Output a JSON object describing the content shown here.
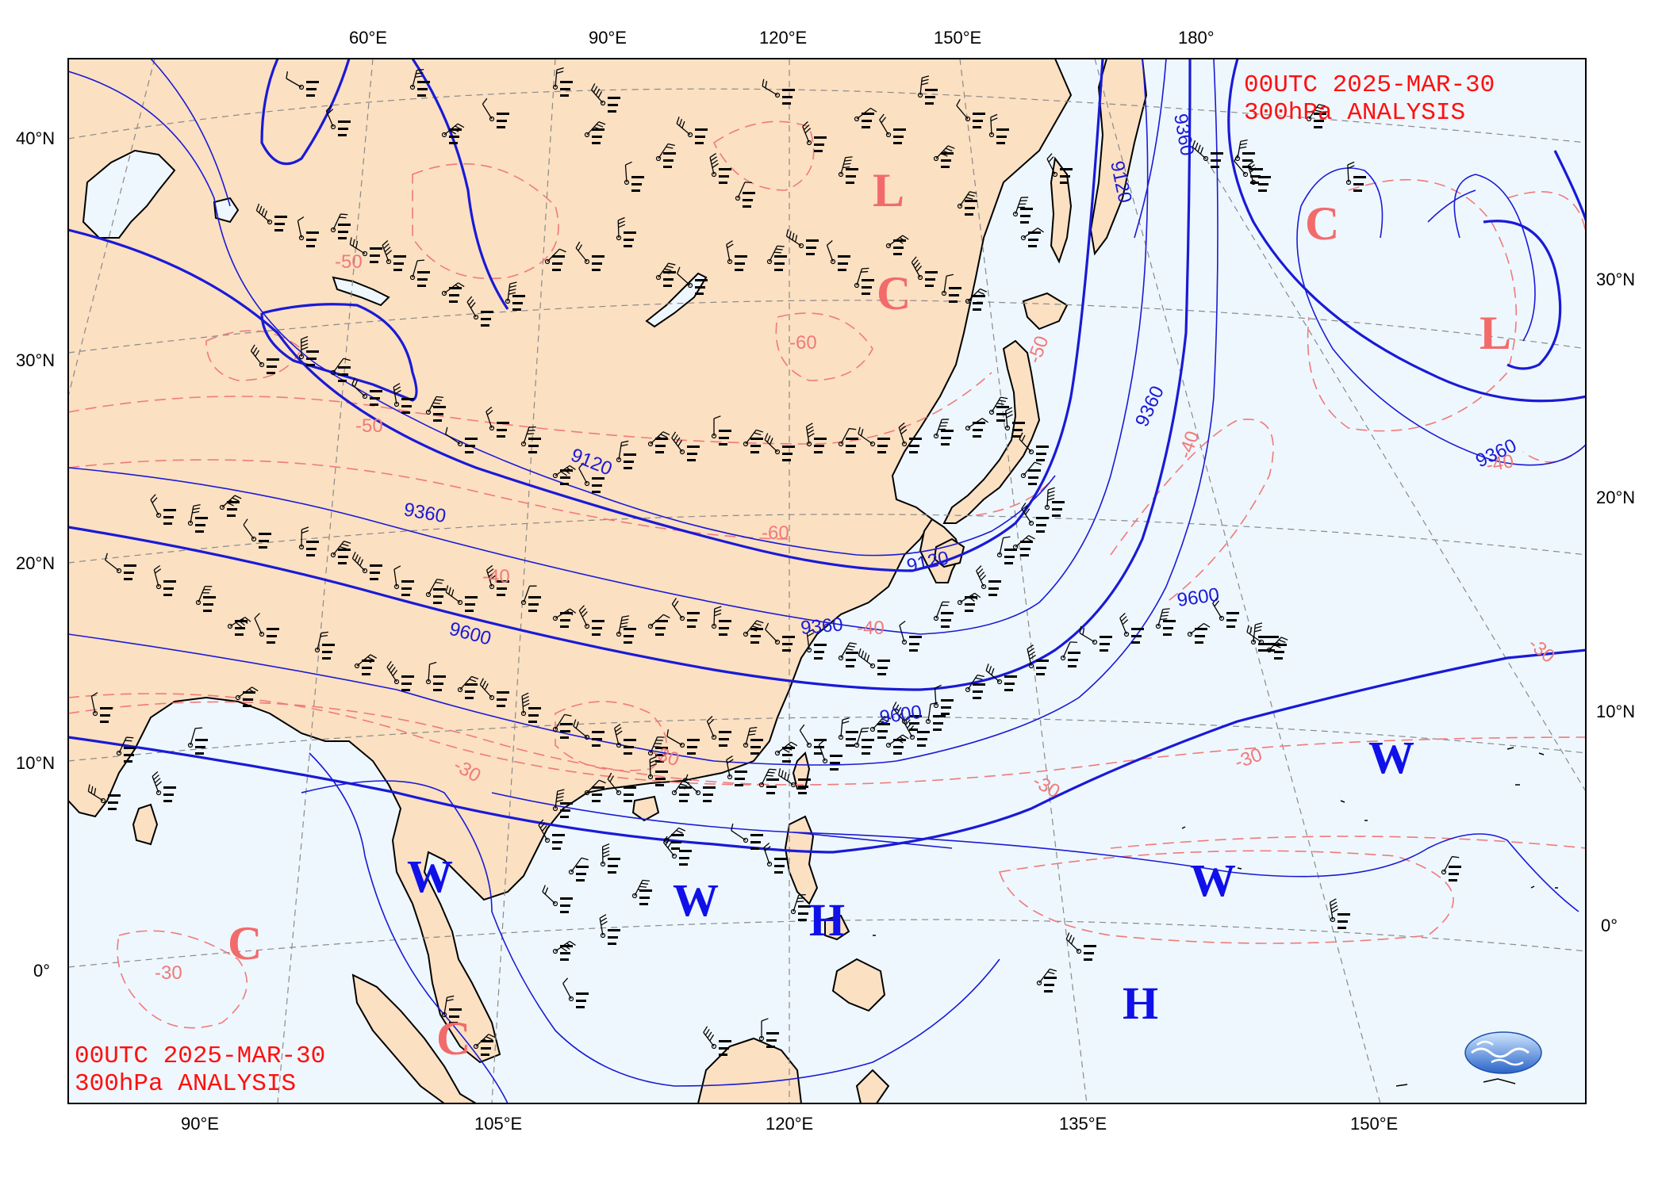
{
  "title": {
    "line1": "00UTC  2025-MAR-30",
    "line2": "300hPa ANALYSIS"
  },
  "axes": {
    "top_lon": [
      "60°E",
      "90°E",
      "120°E",
      "150°E",
      "180°"
    ],
    "bottom_lon": [
      "90°E",
      "105°E",
      "120°E",
      "135°E",
      "150°E"
    ],
    "left_lat": [
      "40°N",
      "30°N",
      "20°N",
      "10°N",
      "0°"
    ],
    "right_lat": [
      "30°N",
      "20°N",
      "10°N",
      "0°"
    ]
  },
  "height_contour_labels": [
    "9120",
    "9360",
    "9600",
    "9120",
    "9360",
    "9600",
    "9360",
    "9360",
    "9120",
    "9360"
  ],
  "temperature_labels": [
    "-50",
    "-50",
    "-40",
    "-60",
    "-50",
    "-60",
    "-40",
    "-30",
    "-30",
    "-30",
    "-30",
    "-40",
    "-40",
    "-30",
    "-30"
  ],
  "systems": [
    {
      "type": "L",
      "color": "red"
    },
    {
      "type": "C",
      "color": "red"
    },
    {
      "type": "C",
      "color": "red"
    },
    {
      "type": "L",
      "color": "red"
    },
    {
      "type": "C",
      "color": "red"
    },
    {
      "type": "C",
      "color": "red"
    },
    {
      "type": "W",
      "color": "blue"
    },
    {
      "type": "W",
      "color": "blue"
    },
    {
      "type": "H",
      "color": "blue"
    },
    {
      "type": "W",
      "color": "blue"
    },
    {
      "type": "W",
      "color": "blue"
    },
    {
      "type": "H",
      "color": "blue"
    }
  ],
  "colors": {
    "land": "#fbe0c2",
    "ocean": "#eef7fd",
    "height_contour": "#1a1ad6",
    "temperature_contour": "#f07a7a",
    "graticule": "#8a8a8a",
    "title": "#ff1010",
    "station": "#000000"
  },
  "logo": {
    "name": "cwa-logo-icon"
  }
}
